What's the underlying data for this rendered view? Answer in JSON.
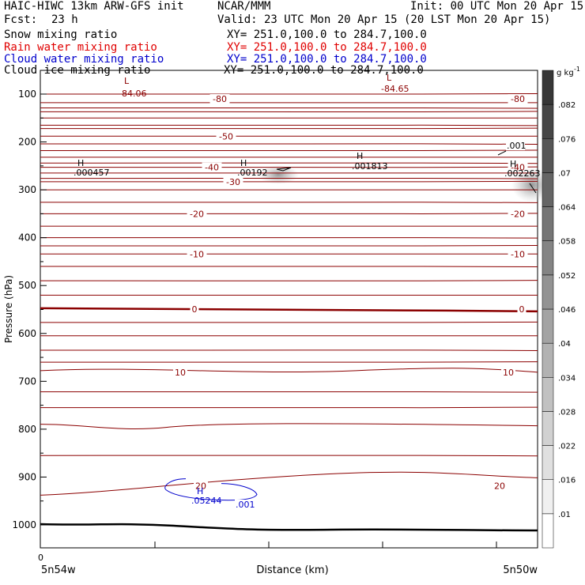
{
  "header": {
    "model": "HAIC-HIWC 13km ARW-GFS init",
    "org": "NCAR/MMM",
    "init": "Init: 00 UTC Mon 20 Apr 15",
    "fcst_label": "Fcst:",
    "fcst_value": "23 h",
    "valid": "Valid: 23 UTC Mon 20 Apr 15 (20 LST Mon 20 Apr 15)"
  },
  "fields": [
    {
      "name": "Snow mixing ratio",
      "xy": "XY= 251.0,100.0 to 284.7,100.0",
      "color": "#000000"
    },
    {
      "name": "Rain water mixing ratio",
      "xy": "XY= 251.0,100.0 to 284.7,100.0",
      "color": "#e00000"
    },
    {
      "name": "Cloud water mixing ratio",
      "xy": "XY= 251.0,100.0 to 284.7,100.0",
      "color": "#0000cc"
    },
    {
      "name": "Cloud ice mixing ratio",
      "xy": "XY= 251.0,100.0 to 284.7,100.0",
      "color": "#000000"
    }
  ],
  "chart_data": {
    "type": "contour",
    "xlabel": "Distance (km)",
    "ylabel": "Pressure (hPa)",
    "x_tick_label": "0",
    "x_end_labels": [
      "5n54w",
      "5n50w"
    ],
    "yticks": [
      100,
      200,
      300,
      400,
      500,
      600,
      700,
      800,
      900,
      1000
    ],
    "ylim": [
      1050,
      50
    ],
    "colorbar": {
      "unit": "g kg",
      "unit_exp": "-1",
      "ticks": [
        ".01",
        ".016",
        ".022",
        ".028",
        ".034",
        ".04",
        ".046",
        ".052",
        ".058",
        ".064",
        ".07",
        ".076",
        ".082"
      ]
    },
    "isotherm_labels": [
      {
        "text": "-80",
        "p": 110,
        "at": [
          "mid",
          "right"
        ]
      },
      {
        "text": "-50",
        "p": 188,
        "at": [
          "mid"
        ]
      },
      {
        "text": "-40",
        "p": 253,
        "at": [
          "mid",
          "right"
        ]
      },
      {
        "text": "-30",
        "p": 283,
        "at": [
          "mid"
        ]
      },
      {
        "text": "-20",
        "p": 350,
        "at": [
          "mid",
          "right"
        ]
      },
      {
        "text": "-10",
        "p": 434,
        "at": [
          "mid",
          "right"
        ]
      },
      {
        "text": "0",
        "p": 549,
        "at": [
          "mid",
          "right"
        ]
      },
      {
        "text": "10",
        "p": 681,
        "at": [
          "mid",
          "right"
        ]
      },
      {
        "text": "20",
        "p": 918,
        "at": [
          "mid",
          "right"
        ]
      }
    ],
    "extrema": [
      {
        "kind": "L",
        "value": "-84.06",
        "color": "#8b0000"
      },
      {
        "kind": "L",
        "value": "-84.65",
        "color": "#8b0000"
      },
      {
        "kind": "H",
        "value": ".000457",
        "color": "#000000"
      },
      {
        "kind": "H",
        "value": ".00192",
        "color": "#000000"
      },
      {
        "kind": "H",
        "value": ".001813",
        "color": "#000000"
      },
      {
        "kind": "H",
        "value": ".002263",
        "color": "#000000"
      },
      {
        "kind": "H",
        "value": ".05244",
        "color": "#0000cc"
      }
    ],
    "contour_labels": [
      {
        "text": ".001",
        "color": "#000000"
      },
      {
        "text": ".001",
        "color": "#0000cc"
      }
    ]
  }
}
